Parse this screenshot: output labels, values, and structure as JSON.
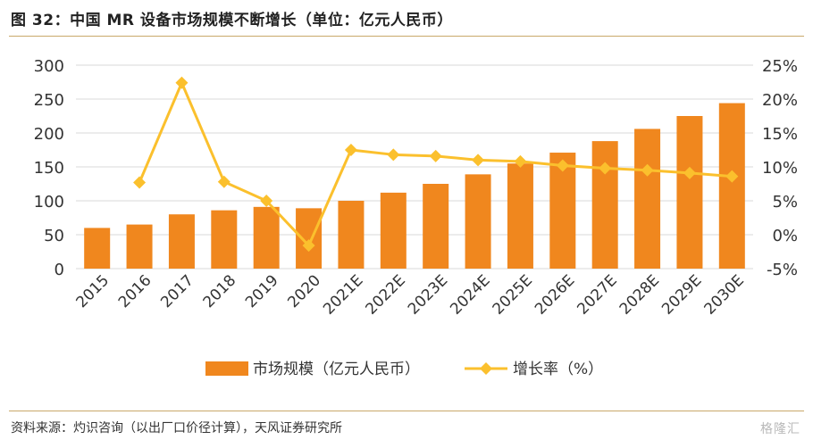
{
  "title": "图 32：中国 MR 设备市场规模不断增长（单位：亿元人民币）",
  "source": "资料来源：灼识咨询（以出厂口价径计算），天风证券研究所",
  "watermark": "格隆汇",
  "colors": {
    "bar": "#f0871e",
    "line": "#fbc02d",
    "accent_rule": "#c9a86a"
  },
  "chart_data": {
    "type": "bar",
    "categories": [
      "2015",
      "2016",
      "2017",
      "2018",
      "2019",
      "2020",
      "2021E",
      "2022E",
      "2023E",
      "2024E",
      "2025E",
      "2026E",
      "2027E",
      "2028E",
      "2029E",
      "2030E"
    ],
    "series": [
      {
        "name": "市场规模（亿元人民币）",
        "type": "bar",
        "axis": "left",
        "values": [
          60,
          65,
          80,
          86,
          91,
          89,
          100,
          112,
          125,
          139,
          155,
          171,
          188,
          206,
          225,
          244
        ]
      },
      {
        "name": "增长率（%）",
        "type": "line",
        "axis": "right",
        "values": [
          null,
          7.7,
          22.4,
          7.8,
          5.0,
          -1.6,
          12.5,
          11.8,
          11.6,
          11.0,
          10.8,
          10.2,
          9.8,
          9.5,
          9.1,
          8.6
        ]
      }
    ],
    "y_left": {
      "ylim": [
        0,
        300
      ],
      "ticks": [
        "0",
        "50",
        "100",
        "150",
        "200",
        "250",
        "300"
      ]
    },
    "y_right": {
      "ylim": [
        -5,
        25
      ],
      "ticks": [
        "-5%",
        "0%",
        "5%",
        "10%",
        "15%",
        "20%",
        "25%"
      ]
    },
    "grid": true,
    "legend": "bottom-center"
  }
}
